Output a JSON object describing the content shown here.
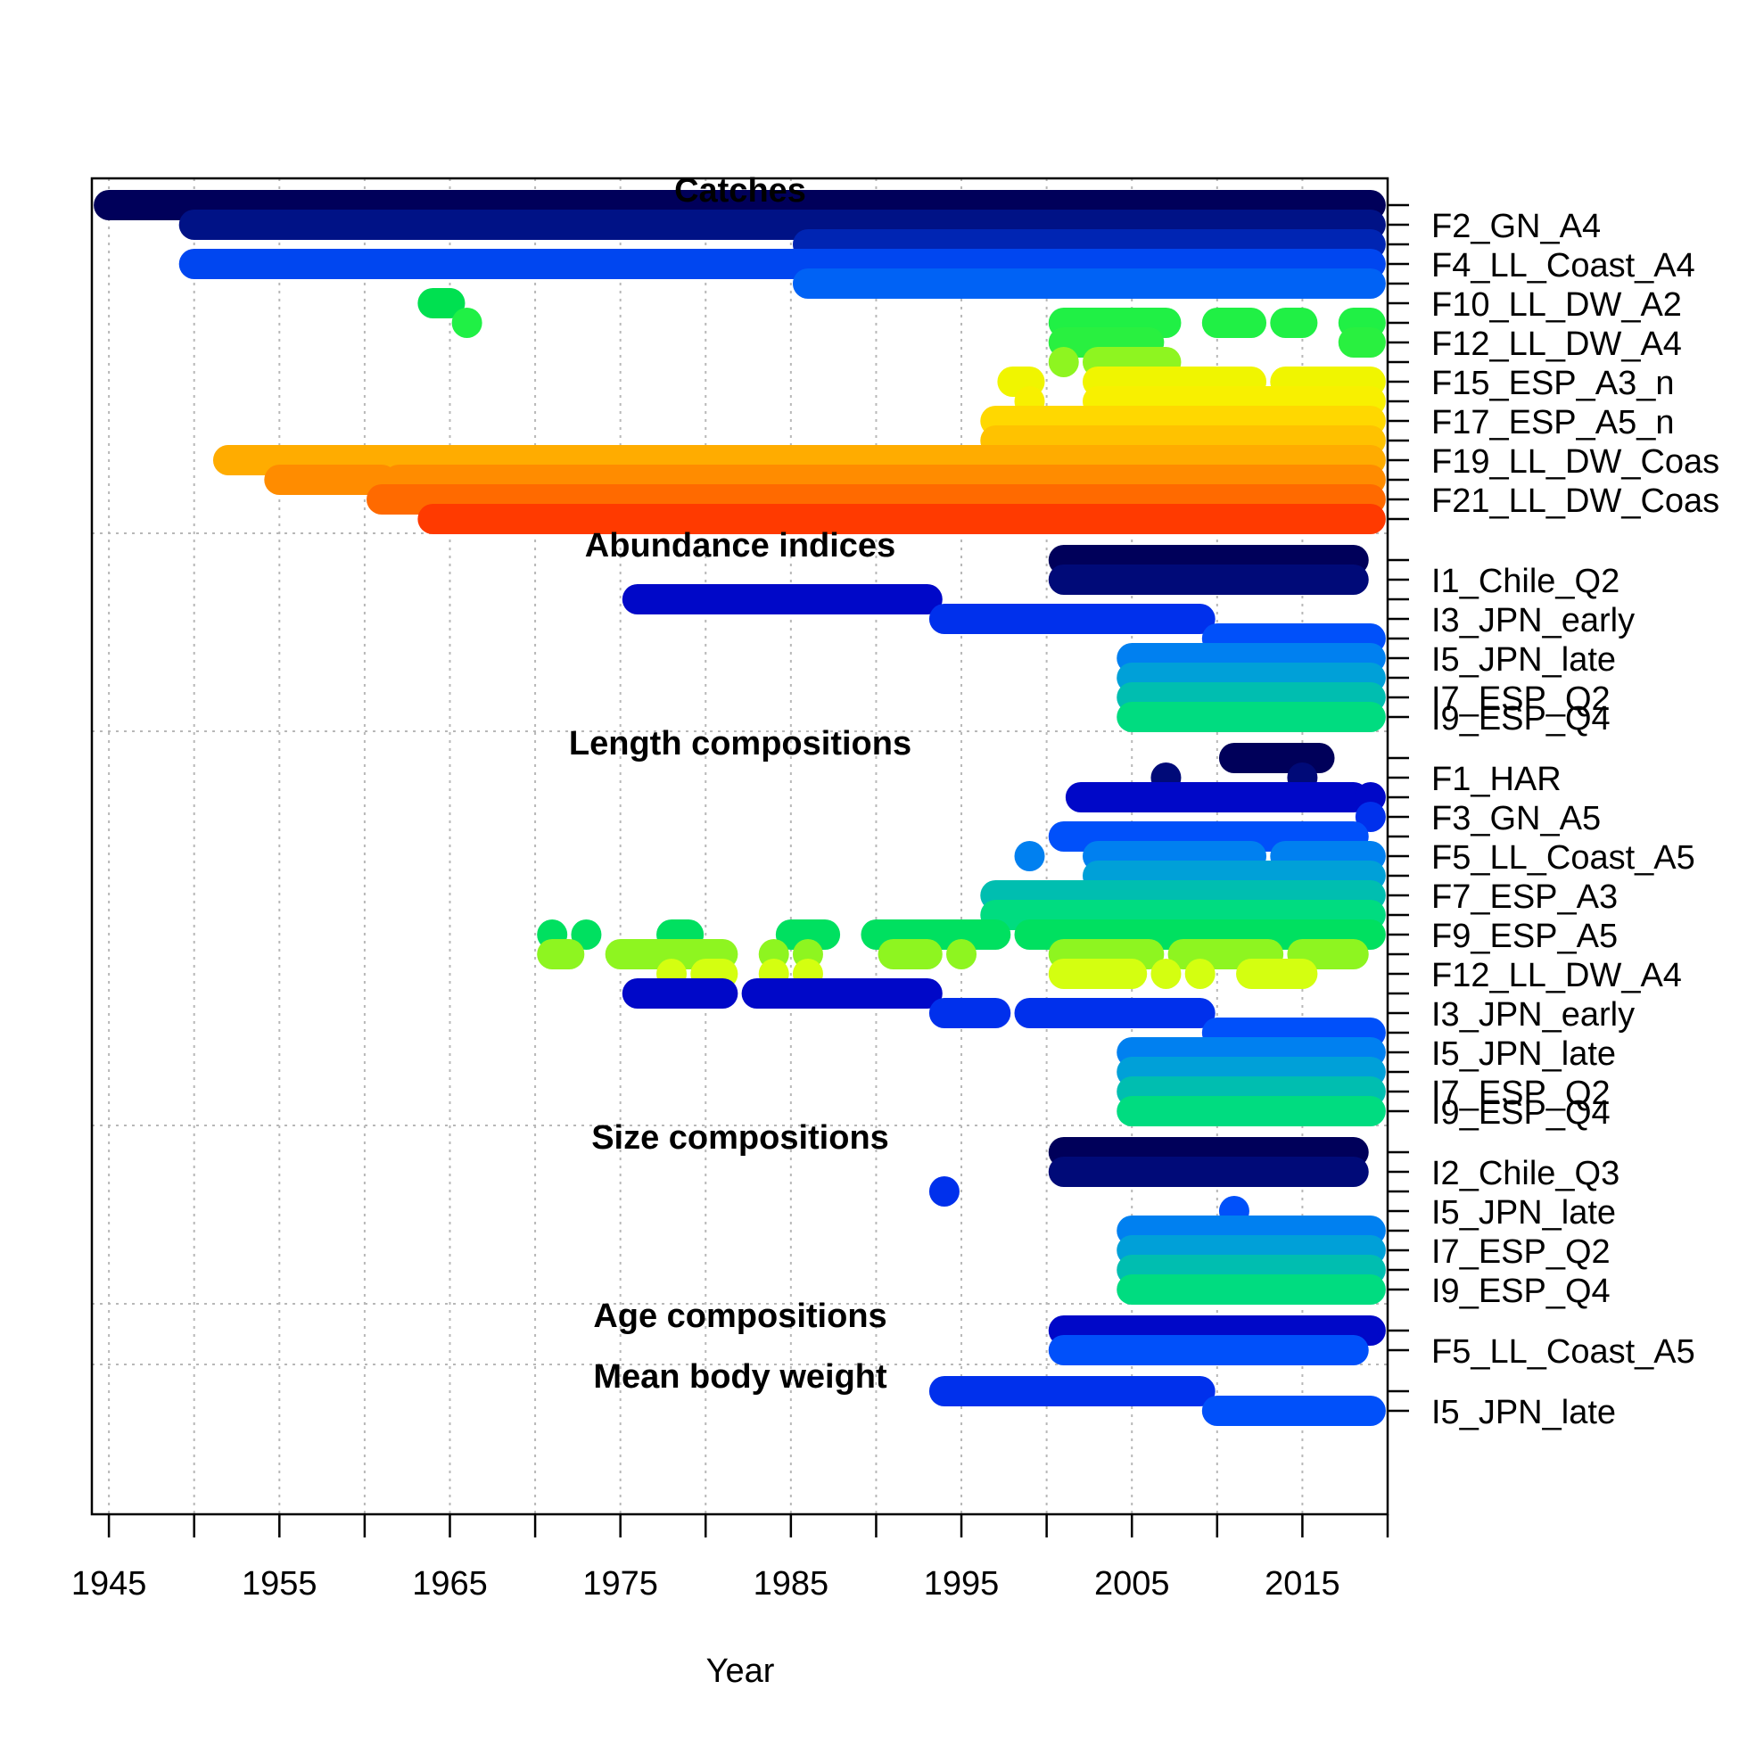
{
  "chart_data": {
    "type": "timeline",
    "xlabel": "Year",
    "xlim": [
      1944,
      2020
    ],
    "x_ticks": [
      1945,
      1955,
      1965,
      1975,
      1985,
      1995,
      2005,
      2015
    ],
    "grid": true,
    "sections": [
      {
        "title": "Catches",
        "labels": [
          "F2_GN_A4",
          "F4_LL_Coast_A4",
          "F10_LL_DW_A2",
          "F12_LL_DW_A4",
          "F15_ESP_A3_n",
          "F17_ESP_A5_n",
          "F19_LL_DW_Coas",
          "F21_LL_DW_Coas"
        ],
        "series": [
          {
            "color": "#00005A",
            "spans": [
              [
                1945,
                2019
              ]
            ]
          },
          {
            "color": "#001286",
            "spans": [
              [
                1950,
                2019
              ]
            ]
          },
          {
            "color": "#0025B3",
            "spans": [
              [
                1986,
                2019
              ]
            ]
          },
          {
            "color": "#0046F0",
            "spans": [
              [
                1950,
                2019
              ]
            ]
          },
          {
            "color": "#0062F5",
            "spans": [
              [
                1986,
                2019
              ]
            ]
          },
          {
            "color": "#00E050",
            "spans": [
              [
                1964,
                1965
              ]
            ]
          },
          {
            "color": "#20F045",
            "spans": [
              [
                1966,
                1966
              ],
              [
                2001,
                2007
              ],
              [
                2010,
                2012
              ],
              [
                2014,
                2015
              ],
              [
                2018,
                2019
              ]
            ]
          },
          {
            "color": "#29F040",
            "spans": [
              [
                2001,
                2006
              ],
              [
                2018,
                2019
              ]
            ]
          },
          {
            "color": "#8EF520",
            "spans": [
              [
                2001,
                2001
              ],
              [
                2003,
                2007
              ]
            ]
          },
          {
            "color": "#F0F500",
            "spans": [
              [
                1998,
                1999
              ],
              [
                2003,
                2012
              ],
              [
                2014,
                2019
              ]
            ]
          },
          {
            "color": "#F8F000",
            "spans": [
              [
                1999,
                1999
              ],
              [
                2003,
                2019
              ]
            ]
          },
          {
            "color": "#FFD800",
            "spans": [
              [
                1997,
                2019
              ]
            ]
          },
          {
            "color": "#FFC200",
            "spans": [
              [
                1997,
                2019
              ]
            ]
          },
          {
            "color": "#FFAC00",
            "spans": [
              [
                1952,
                2019
              ]
            ]
          },
          {
            "color": "#FF8C00",
            "spans": [
              [
                1955,
                1961
              ],
              [
                1962,
                2019
              ]
            ]
          },
          {
            "color": "#FF6A00",
            "spans": [
              [
                1961,
                2019
              ]
            ]
          },
          {
            "color": "#FF3A00",
            "spans": [
              [
                1964,
                2019
              ]
            ]
          }
        ]
      },
      {
        "title": "Abundance indices",
        "labels": [
          "I1_Chile_Q2",
          "I3_JPN_early",
          "I5_JPN_late",
          "I7_ESP_Q2",
          "I9_ESP_Q4"
        ],
        "series": [
          {
            "color": "#00005A",
            "spans": [
              [
                2001,
                2018
              ]
            ]
          },
          {
            "color": "#000A78",
            "spans": [
              [
                2001,
                2018
              ]
            ]
          },
          {
            "color": "#0008C8",
            "spans": [
              [
                1976,
                1993
              ]
            ]
          },
          {
            "color": "#0030EC",
            "spans": [
              [
                1994,
                2009
              ]
            ]
          },
          {
            "color": "#0050FA",
            "spans": [
              [
                2010,
                2019
              ]
            ]
          },
          {
            "color": "#0080F0",
            "spans": [
              [
                2005,
                2019
              ]
            ]
          },
          {
            "color": "#00A0D8",
            "spans": [
              [
                2005,
                2019
              ]
            ]
          },
          {
            "color": "#00BEB0",
            "spans": [
              [
                2005,
                2019
              ]
            ]
          },
          {
            "color": "#00DC80",
            "spans": [
              [
                2005,
                2019
              ]
            ]
          }
        ]
      },
      {
        "title": "Length compositions",
        "labels": [
          "F1_HAR",
          "F3_GN_A5",
          "F5_LL_Coast_A5",
          "F7_ESP_A3",
          "F9_ESP_A5",
          "F12_LL_DW_A4",
          "I3_JPN_early",
          "I5_JPN_late",
          "I7_ESP_Q2",
          "I9_ESP_Q4"
        ],
        "series": [
          {
            "color": "#00005A",
            "spans": [
              [
                2011,
                2016
              ]
            ]
          },
          {
            "color": "#000A78",
            "spans": [
              [
                2007,
                2007
              ],
              [
                2015,
                2015
              ]
            ]
          },
          {
            "color": "#0008C8",
            "spans": [
              [
                2002,
                2018
              ],
              [
                2019,
                2019
              ]
            ]
          },
          {
            "color": "#0030EC",
            "spans": [
              [
                2019,
                2019
              ]
            ]
          },
          {
            "color": "#0050FA",
            "spans": [
              [
                2001,
                2018
              ]
            ]
          },
          {
            "color": "#0080F0",
            "spans": [
              [
                1999,
                1999
              ],
              [
                2003,
                2012
              ],
              [
                2014,
                2019
              ]
            ]
          },
          {
            "color": "#00A0D8",
            "spans": [
              [
                2003,
                2019
              ]
            ]
          },
          {
            "color": "#00BEB0",
            "spans": [
              [
                1997,
                2019
              ]
            ]
          },
          {
            "color": "#00DC80",
            "spans": [
              [
                1997,
                2019
              ]
            ]
          },
          {
            "color": "#00E060",
            "spans": [
              [
                1971,
                1971
              ],
              [
                1973,
                1973
              ],
              [
                1978,
                1979
              ],
              [
                1985,
                1987
              ],
              [
                1990,
                1997
              ],
              [
                1999,
                2019
              ]
            ]
          },
          {
            "color": "#8EF520",
            "spans": [
              [
                1971,
                1972
              ],
              [
                1975,
                1981
              ],
              [
                1984,
                1984
              ],
              [
                1986,
                1986
              ],
              [
                1991,
                1993
              ],
              [
                1995,
                1995
              ],
              [
                2001,
                2006
              ],
              [
                2008,
                2013
              ],
              [
                2015,
                2018
              ]
            ]
          },
          {
            "color": "#D4FF10",
            "spans": [
              [
                1978,
                1978
              ],
              [
                1980,
                1981
              ],
              [
                1984,
                1984
              ],
              [
                1986,
                1986
              ],
              [
                2001,
                2005
              ],
              [
                2007,
                2007
              ],
              [
                2009,
                2009
              ],
              [
                2012,
                2015
              ]
            ]
          },
          {
            "color": "#0008C8",
            "spans": [
              [
                1976,
                1981
              ],
              [
                1983,
                1993
              ]
            ]
          },
          {
            "color": "#0030EC",
            "spans": [
              [
                1994,
                1997
              ],
              [
                1999,
                2009
              ]
            ]
          },
          {
            "color": "#0050FA",
            "spans": [
              [
                2010,
                2019
              ]
            ]
          },
          {
            "color": "#0080F0",
            "spans": [
              [
                2005,
                2019
              ]
            ]
          },
          {
            "color": "#00A0D8",
            "spans": [
              [
                2005,
                2019
              ]
            ]
          },
          {
            "color": "#00BEB0",
            "spans": [
              [
                2005,
                2019
              ]
            ]
          },
          {
            "color": "#00DC80",
            "spans": [
              [
                2005,
                2019
              ]
            ]
          }
        ]
      },
      {
        "title": "Size compositions",
        "labels": [
          "I2_Chile_Q3",
          "I5_JPN_late",
          "I7_ESP_Q2",
          "I9_ESP_Q4"
        ],
        "series": [
          {
            "color": "#00005A",
            "spans": [
              [
                2001,
                2018
              ]
            ]
          },
          {
            "color": "#000A78",
            "spans": [
              [
                2001,
                2018
              ]
            ]
          },
          {
            "color": "#0030EC",
            "spans": [
              [
                1994,
                1994
              ]
            ]
          },
          {
            "color": "#0050FA",
            "spans": [
              [
                2011,
                2011
              ]
            ]
          },
          {
            "color": "#0080F0",
            "spans": [
              [
                2005,
                2019
              ]
            ]
          },
          {
            "color": "#00A0D8",
            "spans": [
              [
                2005,
                2019
              ]
            ]
          },
          {
            "color": "#00BEB0",
            "spans": [
              [
                2005,
                2019
              ]
            ]
          },
          {
            "color": "#00DC80",
            "spans": [
              [
                2005,
                2019
              ]
            ]
          }
        ]
      },
      {
        "title": "Age compositions",
        "labels": [
          "F5_LL_Coast_A5"
        ],
        "series": [
          {
            "color": "#0008C8",
            "spans": [
              [
                2001,
                2019
              ]
            ]
          },
          {
            "color": "#0050FA",
            "spans": [
              [
                2001,
                2018
              ]
            ]
          }
        ]
      },
      {
        "title": "Mean body weight",
        "labels": [
          "I5_JPN_late"
        ],
        "series": [
          {
            "color": "#0030EC",
            "spans": [
              [
                1994,
                2009
              ]
            ]
          },
          {
            "color": "#0050FA",
            "spans": [
              [
                2010,
                2019
              ]
            ]
          }
        ]
      }
    ]
  }
}
